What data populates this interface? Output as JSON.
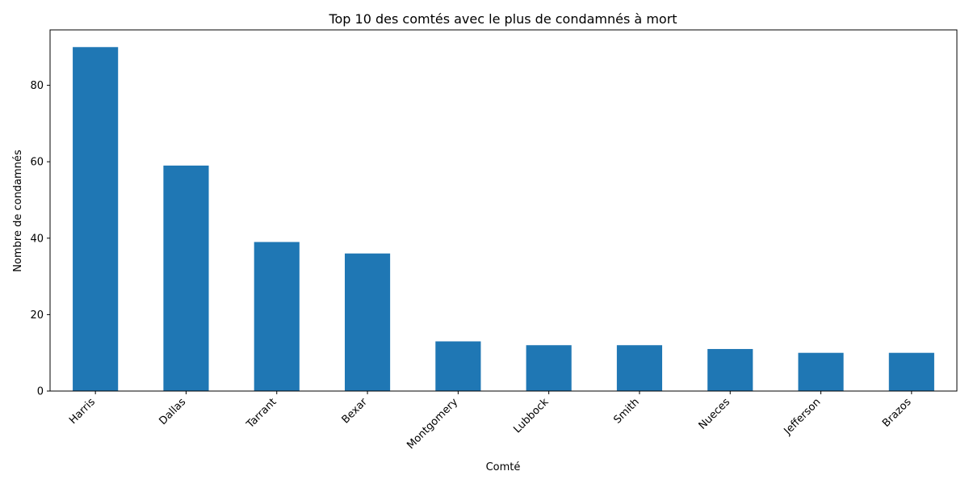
{
  "chart_data": {
    "type": "bar",
    "title": "Top 10 des comtés avec le plus de condamnés à mort",
    "xlabel": "Comté",
    "ylabel": "Nombre de condamnés",
    "categories": [
      "Harris",
      "Dallas",
      "Tarrant",
      "Bexar",
      "Montgomery",
      "Lubbock",
      "Smith",
      "Nueces",
      "Jefferson",
      "Brazos"
    ],
    "values": [
      90,
      59,
      39,
      36,
      13,
      12,
      12,
      11,
      10,
      10
    ],
    "ylim": [
      0,
      94.5
    ],
    "yticks": [
      0,
      20,
      40,
      60,
      80
    ],
    "grid": false,
    "legend": "none",
    "bar_color": "#1f77b4"
  }
}
